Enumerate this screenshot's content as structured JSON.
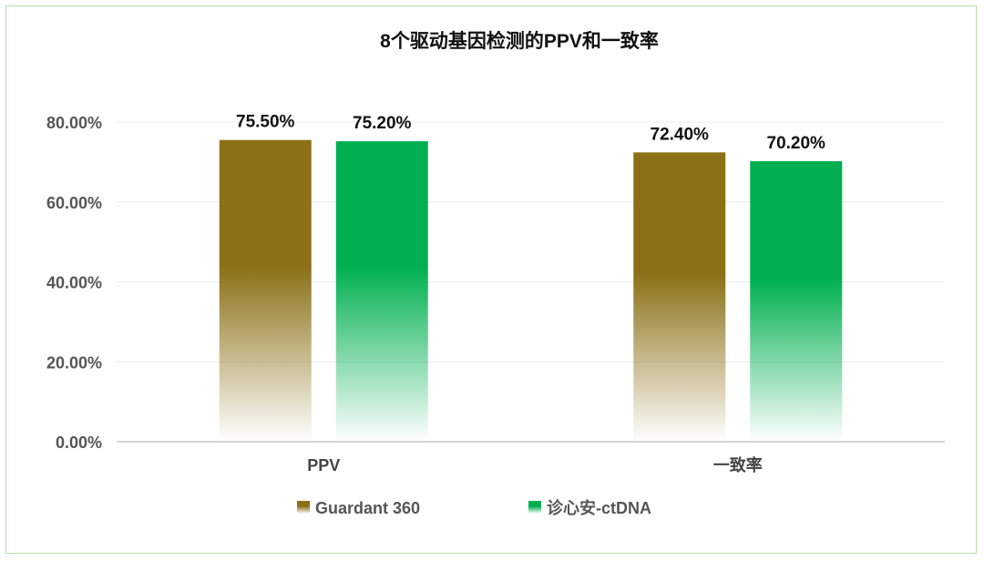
{
  "chart_data": {
    "type": "bar",
    "title": "8个驱动基因检测的PPV和一致率",
    "categories": [
      "PPV",
      "一致率"
    ],
    "series": [
      {
        "name": "Guardant 360",
        "values": [
          75.5,
          72.4
        ],
        "value_labels": [
          "75.50%",
          "72.40%"
        ],
        "color": "#8b7016"
      },
      {
        "name": "诊心安-ctDNA",
        "values": [
          75.2,
          70.2
        ],
        "value_labels": [
          "75.20%",
          "70.20%"
        ],
        "color": "#00b050"
      }
    ],
    "ylim": [
      0,
      80
    ],
    "yticks": [
      0,
      20,
      40,
      60,
      80
    ],
    "ytick_labels": [
      "0.00%",
      "20.00%",
      "40.00%",
      "60.00%",
      "80.00%"
    ],
    "xlabel": "",
    "ylabel": "",
    "grid": true,
    "legend_position": "bottom",
    "gradient_fill": "solid at top, fading to white at base"
  }
}
